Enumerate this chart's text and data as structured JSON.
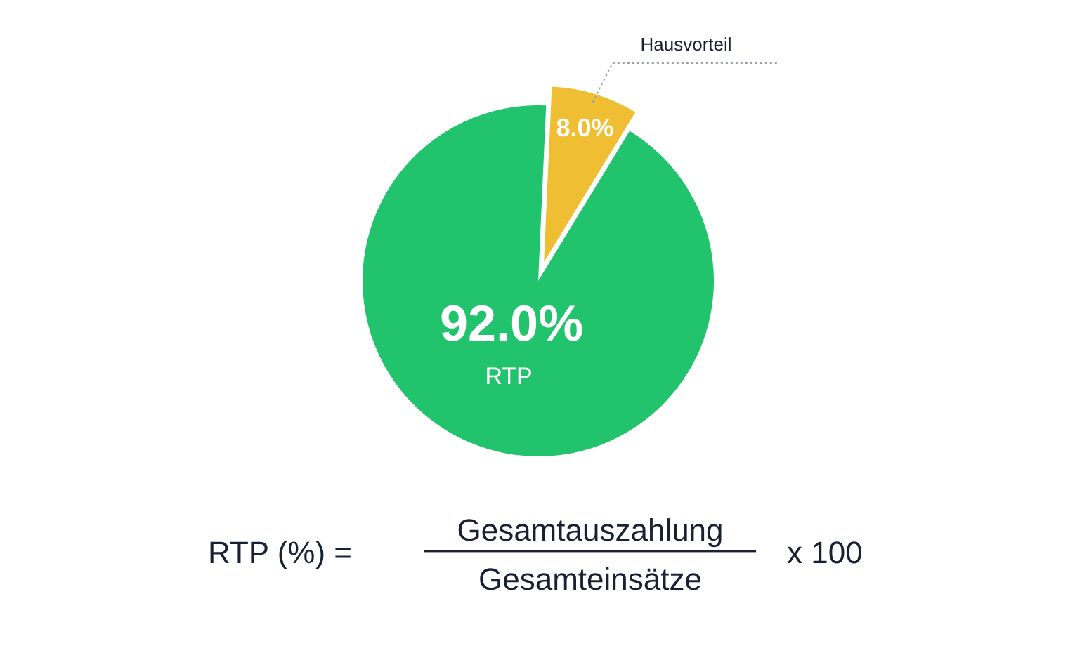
{
  "chart_data": {
    "type": "pie",
    "categories": [
      "Hausvorteil",
      "RTP"
    ],
    "values": [
      8.0,
      92.0
    ],
    "colors": [
      "#f0be32",
      "#21c46c"
    ],
    "value_labels": [
      "8.0%",
      "92.0%"
    ],
    "annotations": [
      "RTP (%) =",
      "Gesamtauszahlung",
      "Gesamteinsätze",
      "x 100"
    ]
  }
}
